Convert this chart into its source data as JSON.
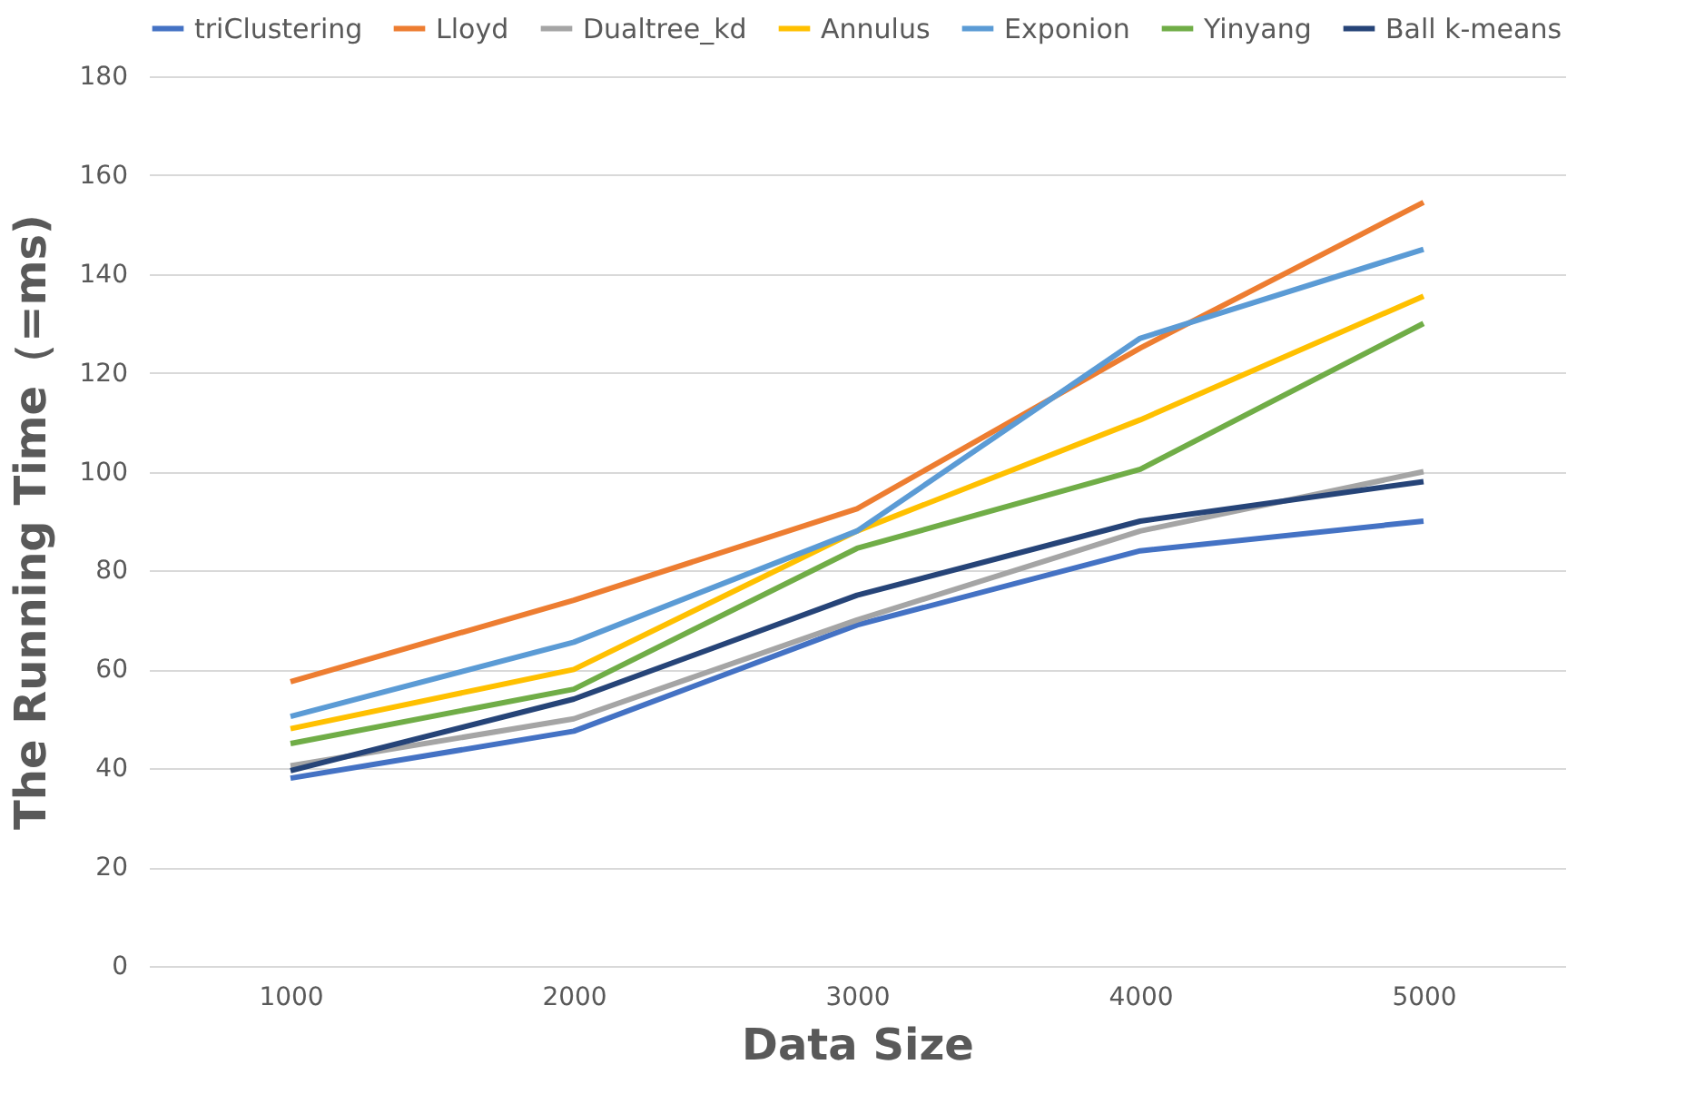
{
  "chart_data": {
    "type": "line",
    "xlabel": "Data Size",
    "ylabel": "The Running Time（=ms)",
    "categories": [
      "1000",
      "2000",
      "3000",
      "4000",
      "5000"
    ],
    "series": [
      {
        "name": "triClustering",
        "color": "#4472c4",
        "values": [
          38,
          47.5,
          69,
          84,
          90
        ]
      },
      {
        "name": "Lloyd",
        "color": "#ed7d31",
        "values": [
          57.5,
          74,
          92.5,
          125,
          154.5
        ]
      },
      {
        "name": "Dualtree_kd",
        "color": "#a5a5a5",
        "values": [
          40.5,
          50,
          70,
          88,
          100
        ]
      },
      {
        "name": "Annulus",
        "color": "#ffc000",
        "values": [
          48,
          60,
          88,
          110.5,
          135.5
        ]
      },
      {
        "name": "Exponion",
        "color": "#5b9bd5",
        "values": [
          50.5,
          65.5,
          88,
          127,
          145
        ]
      },
      {
        "name": "Yinyang",
        "color": "#70ad47",
        "values": [
          45,
          56,
          84.5,
          100.5,
          130
        ]
      },
      {
        "name": "Ball k-means",
        "color": "#264478",
        "values": [
          39.5,
          54,
          75,
          90,
          98
        ]
      }
    ],
    "ylim": [
      0,
      180
    ],
    "yticks": [
      0,
      20,
      40,
      60,
      80,
      100,
      120,
      140,
      160,
      180
    ],
    "grid": "y",
    "legend": "top",
    "marker": "none",
    "line_style": "solid"
  }
}
